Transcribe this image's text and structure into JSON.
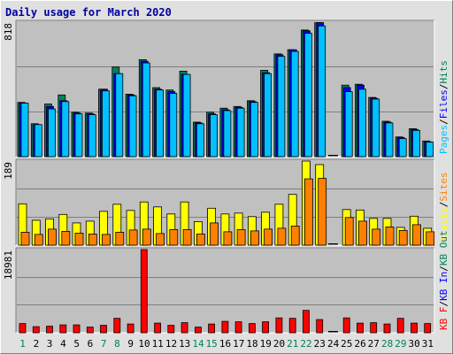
{
  "title": "Daily usage for March 2020",
  "colors": {
    "hits": "#00805c",
    "files": "#0000ff",
    "pages": "#00c0ff",
    "visits": "#ffff00",
    "sites": "#ff8000",
    "kb_in": "#0000ff",
    "kb_out": "#00805c",
    "kb_f": "#ff0000",
    "plot_bg": "#c0c0c0",
    "frame_bg": "#e0e0e0",
    "weekend_day": "#00805c",
    "weekday_day": "#000000"
  },
  "chart_data": [
    {
      "type": "bar",
      "categories": [
        "1",
        "2",
        "3",
        "4",
        "5",
        "6",
        "7",
        "8",
        "9",
        "10",
        "11",
        "12",
        "13",
        "14",
        "15",
        "16",
        "17",
        "18",
        "19",
        "20",
        "21",
        "22",
        "23",
        "24",
        "25",
        "26",
        "27",
        "28",
        "29",
        "30",
        "31"
      ],
      "weekend_days": [
        "1",
        "7",
        "8",
        "14",
        "15",
        "21",
        "22",
        "28",
        "29"
      ],
      "ymax_label": "818",
      "ylim": [
        0,
        818
      ],
      "series_labels": [
        "Pages",
        "Files",
        "Hits"
      ],
      "series": [
        {
          "name": "Hits",
          "values": [
            330,
            200,
            320,
            375,
            270,
            265,
            410,
            545,
            380,
            590,
            420,
            405,
            520,
            210,
            270,
            295,
            305,
            340,
            525,
            625,
            650,
            770,
            815,
            0,
            435,
            440,
            360,
            215,
            120,
            170,
            95
          ]
        },
        {
          "name": "Files",
          "values": [
            325,
            195,
            305,
            340,
            265,
            260,
            410,
            505,
            375,
            580,
            410,
            395,
            500,
            205,
            260,
            285,
            300,
            335,
            510,
            620,
            650,
            765,
            815,
            0,
            420,
            435,
            355,
            210,
            115,
            165,
            90
          ]
        },
        {
          "name": "Pages",
          "values": [
            325,
            195,
            290,
            335,
            260,
            255,
            400,
            505,
            370,
            570,
            405,
            385,
            500,
            200,
            255,
            280,
            295,
            330,
            505,
            610,
            640,
            750,
            795,
            0,
            395,
            410,
            350,
            205,
            110,
            160,
            88
          ]
        }
      ]
    },
    {
      "type": "bar",
      "categories": [
        "1",
        "2",
        "3",
        "4",
        "5",
        "6",
        "7",
        "8",
        "9",
        "10",
        "11",
        "12",
        "13",
        "14",
        "15",
        "16",
        "17",
        "18",
        "19",
        "20",
        "21",
        "22",
        "23",
        "24",
        "25",
        "26",
        "27",
        "28",
        "29",
        "30",
        "31"
      ],
      "ymax_label": "189",
      "ylim": [
        0,
        189
      ],
      "series_labels": [
        "Visits",
        "Sites"
      ],
      "series": [
        {
          "name": "Visits",
          "values": [
            93,
            56,
            59,
            69,
            50,
            54,
            76,
            92,
            78,
            97,
            86,
            70,
            97,
            53,
            83,
            70,
            72,
            64,
            74,
            92,
            114,
            189,
            181,
            0,
            80,
            79,
            60,
            60,
            40,
            65,
            38
          ]
        },
        {
          "name": "Sites",
          "values": [
            29,
            24,
            36,
            31,
            27,
            25,
            24,
            29,
            34,
            36,
            26,
            35,
            35,
            25,
            50,
            30,
            35,
            32,
            36,
            38,
            43,
            149,
            150,
            0,
            62,
            54,
            36,
            41,
            33,
            46,
            30
          ]
        }
      ]
    },
    {
      "type": "bar",
      "categories": [
        "1",
        "2",
        "3",
        "4",
        "5",
        "6",
        "7",
        "8",
        "9",
        "10",
        "11",
        "12",
        "13",
        "14",
        "15",
        "16",
        "17",
        "18",
        "19",
        "20",
        "21",
        "22",
        "23",
        "24",
        "25",
        "26",
        "27",
        "28",
        "29",
        "30",
        "31"
      ],
      "ymax_label": "18981",
      "ylim": [
        0,
        18981
      ],
      "series_labels": [
        "KB F",
        "KB In",
        "KB Out"
      ],
      "series": [
        {
          "name": "KB F",
          "values": [
            2100,
            1400,
            1500,
            1800,
            1800,
            1300,
            1700,
            3300,
            2000,
            18981,
            2200,
            1700,
            2300,
            1300,
            2000,
            2600,
            2500,
            2100,
            2500,
            3400,
            3300,
            5100,
            3000,
            0,
            3400,
            2200,
            2300,
            2000,
            3300,
            2200,
            2100
          ]
        }
      ]
    }
  ]
}
